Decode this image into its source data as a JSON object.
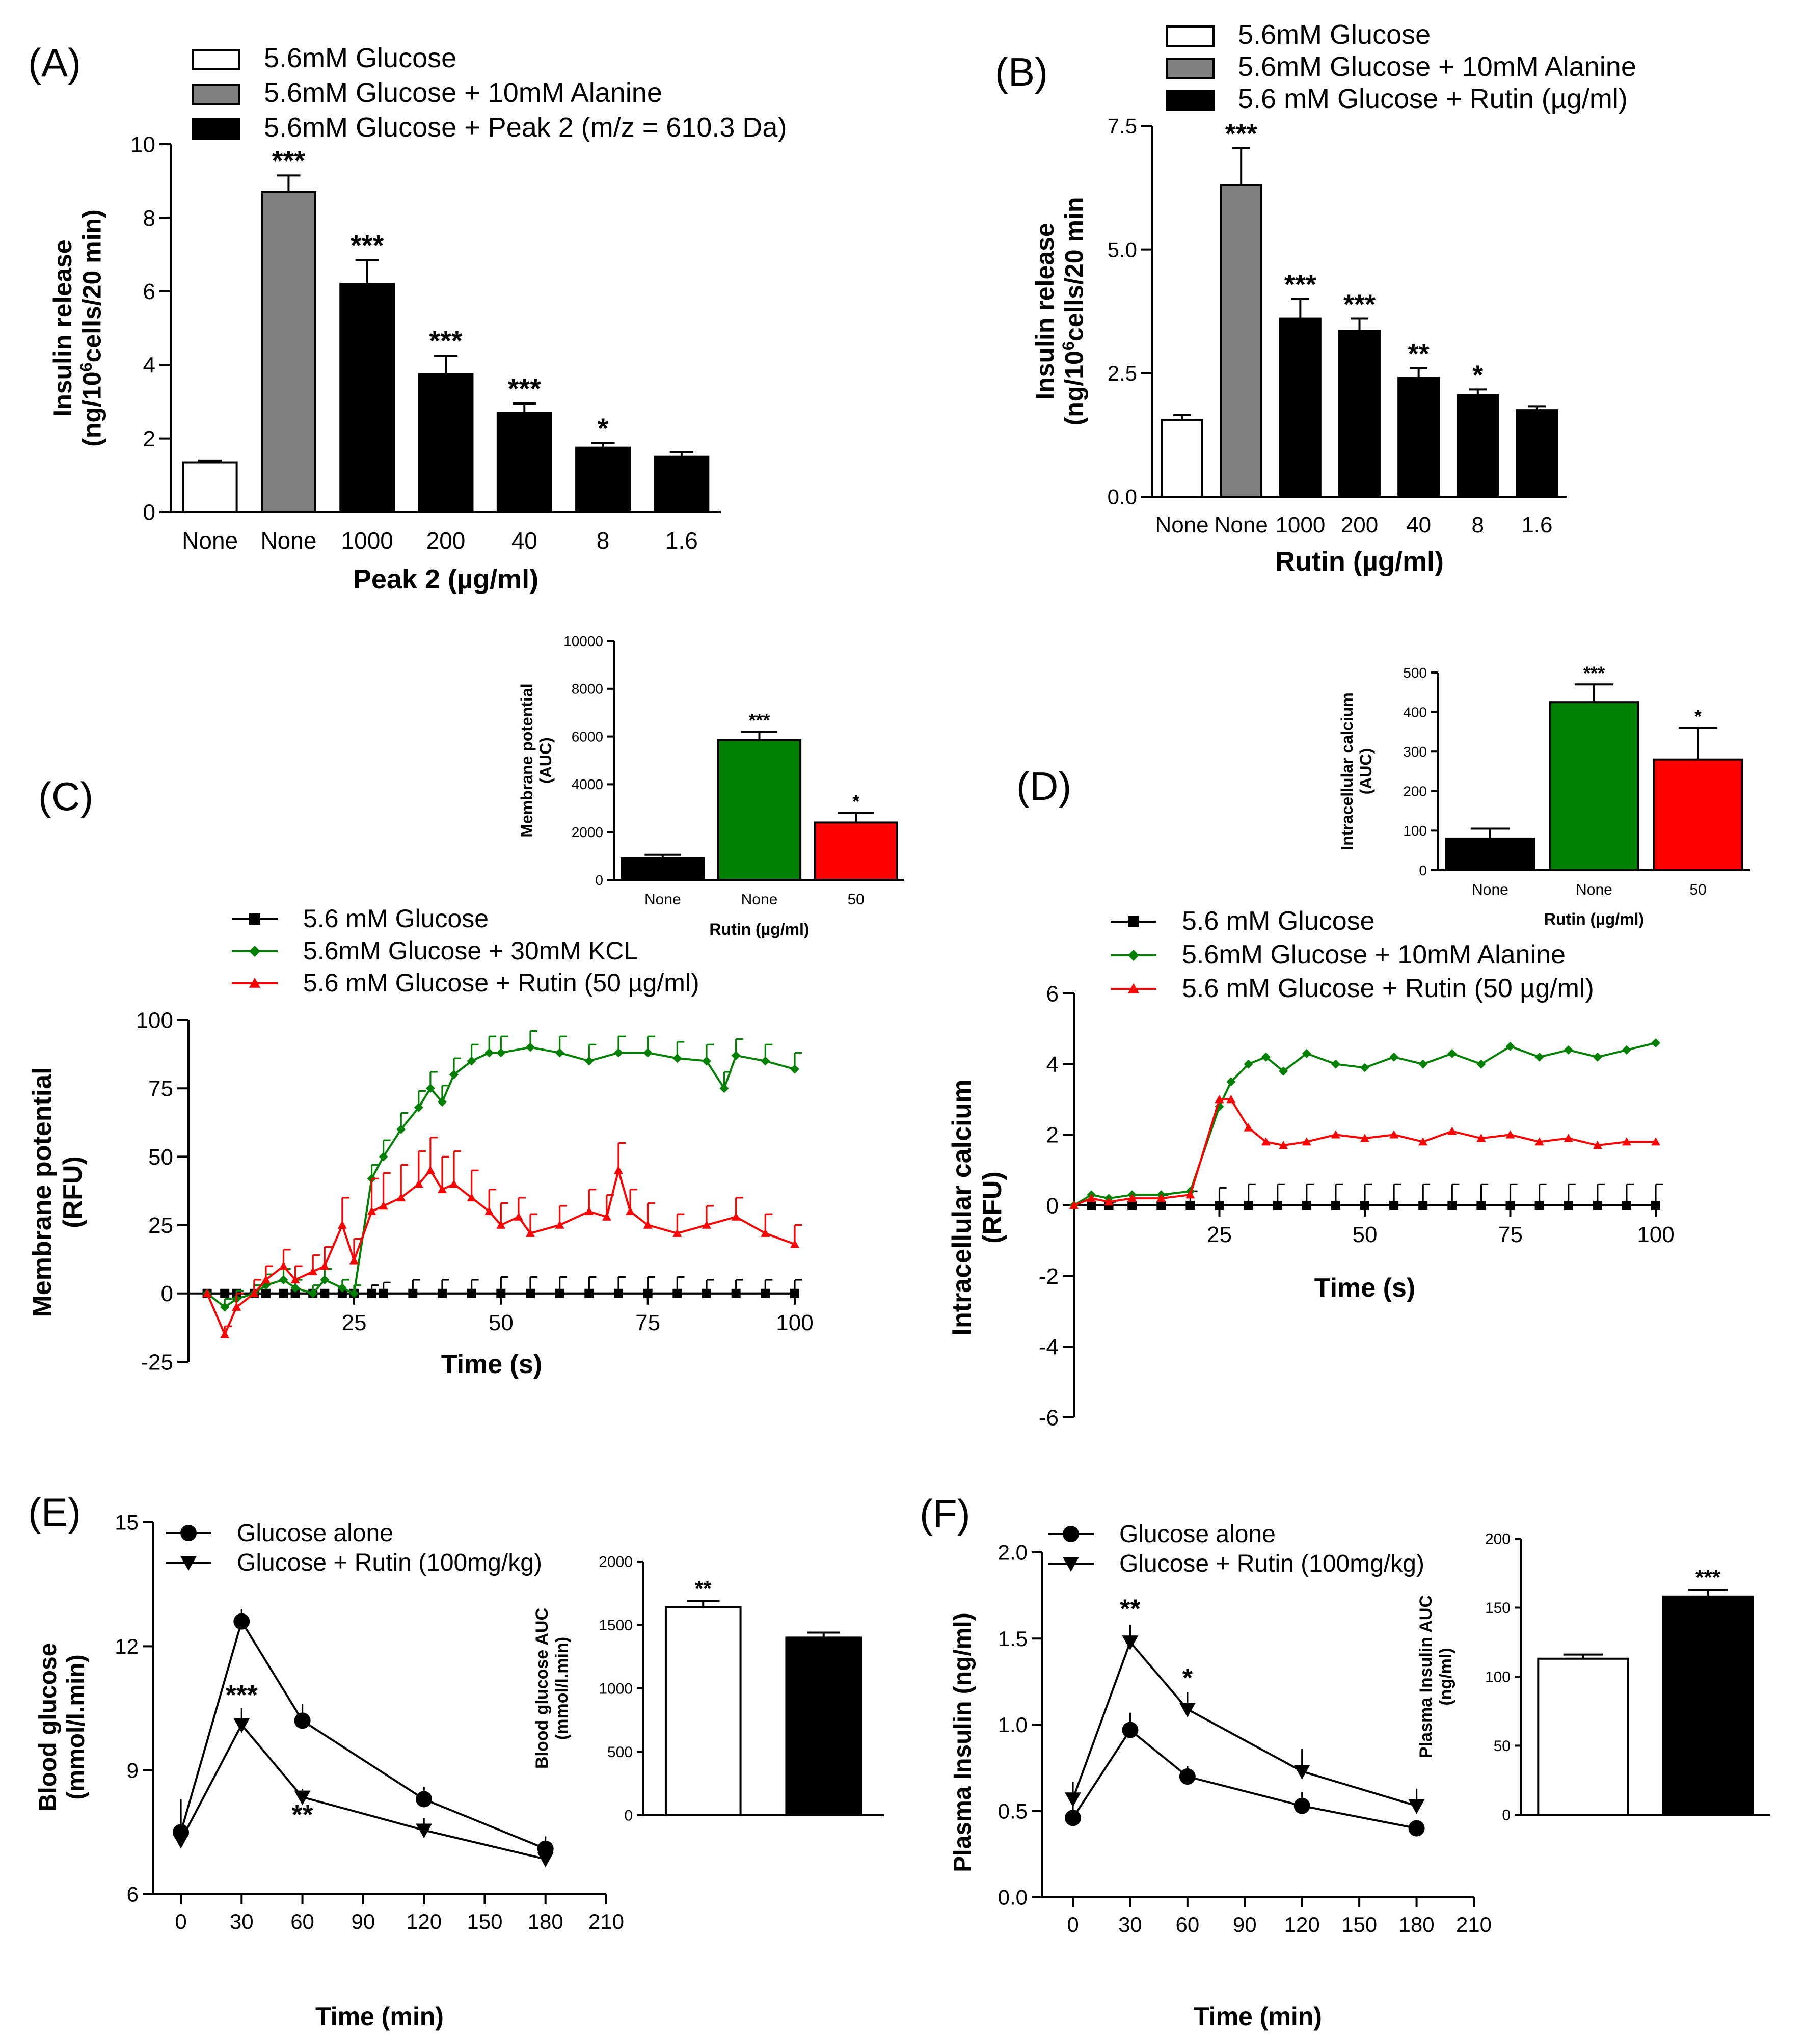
{
  "colors": {
    "white": "#ffffff",
    "gray": "#808080",
    "black": "#000000",
    "green": "#008000",
    "red": "#ff0000",
    "axis": "#000000"
  },
  "chart_data": [
    {
      "id": "A",
      "panel_label": "(A)",
      "type": "bar",
      "categories": [
        "None",
        "None",
        "1000",
        "200",
        "40",
        "8",
        "1.6"
      ],
      "values": [
        1.35,
        8.7,
        6.2,
        3.75,
        2.7,
        1.75,
        1.5
      ],
      "errors": [
        0.05,
        0.45,
        0.65,
        0.5,
        0.25,
        0.12,
        0.12
      ],
      "colors": [
        "white",
        "gray",
        "black",
        "black",
        "black",
        "black",
        "black"
      ],
      "significance": [
        "",
        "***",
        "***",
        "***",
        "***",
        "*",
        ""
      ],
      "ylim": [
        0,
        10
      ],
      "yticks": [
        "0",
        "2",
        "4",
        "6",
        "8",
        "10"
      ],
      "ylabel_line1": "Insulin release",
      "ylabel_line2_pre": "(ng/10",
      "ylabel_line2_sup": "6",
      "ylabel_line2_post": "cells/20 min)",
      "xlabel": "Peak 2 (µg/ml)",
      "legend": [
        {
          "label": "5.6mM Glucose",
          "color": "white"
        },
        {
          "label": "5.6mM Glucose + 10mM Alanine",
          "color": "gray"
        },
        {
          "label": "5.6mM Glucose + Peak 2 (m/z = 610.3 Da)",
          "color": "black"
        }
      ]
    },
    {
      "id": "B",
      "panel_label": "(B)",
      "type": "bar",
      "categories": [
        "None",
        "None",
        "1000",
        "200",
        "40",
        "8",
        "1.6"
      ],
      "values": [
        1.55,
        6.3,
        3.6,
        3.35,
        2.4,
        2.05,
        1.75
      ],
      "errors": [
        0.1,
        0.75,
        0.4,
        0.25,
        0.2,
        0.12,
        0.08
      ],
      "colors": [
        "white",
        "gray",
        "black",
        "black",
        "black",
        "black",
        "black"
      ],
      "significance": [
        "",
        "***",
        "***",
        "***",
        "**",
        "*",
        ""
      ],
      "ylim": [
        0,
        7.5
      ],
      "yticks": [
        "0.0",
        "2.5",
        "5.0",
        "7.5"
      ],
      "ylabel_line1": "Insulin release",
      "ylabel_line2_pre": "(ng/10",
      "ylabel_line2_sup": "6",
      "ylabel_line2_post": "cells/20 min",
      "xlabel": "Rutin (µg/ml)",
      "legend": [
        {
          "label": "5.6mM Glucose",
          "color": "white"
        },
        {
          "label": "5.6mM Glucose + 10mM Alanine",
          "color": "gray"
        },
        {
          "label": "5.6 mM Glucose + Rutin (µg/ml)",
          "color": "black"
        }
      ]
    },
    {
      "id": "C_inset",
      "type": "bar",
      "categories": [
        "None",
        "None",
        "50"
      ],
      "values": [
        900,
        5850,
        2400
      ],
      "errors": [
        150,
        350,
        400
      ],
      "colors": [
        "black",
        "green",
        "red"
      ],
      "significance": [
        "",
        "***",
        "*"
      ],
      "ylim": [
        0,
        10000
      ],
      "yticks": [
        "0",
        "2000",
        "4000",
        "6000",
        "8000",
        "10000"
      ],
      "ylabel_line1": "Membrane potential",
      "ylabel_line2": "(AUC)",
      "xlabel": "Rutin (µg/ml)"
    },
    {
      "id": "C",
      "panel_label": "(C)",
      "type": "line",
      "xlim": [
        -3,
        100
      ],
      "ylim": [
        -25,
        100
      ],
      "xticks": [
        "25",
        "50",
        "75",
        "100"
      ],
      "yticks": [
        "-25",
        "0",
        "25",
        "50",
        "75",
        "100"
      ],
      "xlabel": "Time (s)",
      "ylabel_line1": "Membrane potential",
      "ylabel_line2": "(RFU)",
      "series": [
        {
          "name": "5.6 mM Glucose",
          "color": "black",
          "marker": "square",
          "x": [
            0,
            3,
            5,
            8,
            10,
            13,
            15,
            18,
            20,
            23,
            25,
            28,
            30,
            35,
            40,
            45,
            50,
            55,
            60,
            65,
            70,
            75,
            80,
            85,
            90,
            95,
            100
          ],
          "y": [
            0,
            0,
            0,
            0,
            0,
            0,
            0,
            0,
            0,
            0,
            0,
            0,
            0,
            0,
            0,
            0,
            0,
            0,
            0,
            0,
            0,
            0,
            0,
            0,
            0,
            0,
            0
          ],
          "err": [
            0,
            0,
            0,
            0,
            0,
            0,
            0,
            0,
            0,
            0,
            0,
            3,
            4,
            5,
            5,
            5,
            6,
            6,
            6,
            6,
            6,
            6,
            6,
            5,
            5,
            5,
            5
          ]
        },
        {
          "name": "5.6mM Glucose + 30mM KCL",
          "color": "green",
          "marker": "diamond",
          "x": [
            0,
            3,
            5,
            8,
            10,
            13,
            15,
            18,
            20,
            23,
            25,
            28,
            30,
            33,
            36,
            38,
            40,
            42,
            45,
            48,
            50,
            55,
            60,
            65,
            70,
            75,
            80,
            85,
            88,
            90,
            95,
            100
          ],
          "y": [
            0,
            -5,
            -2,
            0,
            3,
            5,
            2,
            0,
            5,
            2,
            0,
            42,
            50,
            60,
            68,
            75,
            70,
            80,
            85,
            88,
            88,
            90,
            88,
            85,
            88,
            88,
            86,
            85,
            75,
            87,
            85,
            82
          ],
          "err": [
            0,
            3,
            3,
            3,
            4,
            4,
            3,
            3,
            4,
            3,
            3,
            5,
            6,
            6,
            6,
            6,
            6,
            6,
            6,
            6,
            6,
            6,
            6,
            6,
            6,
            6,
            6,
            6,
            6,
            6,
            6,
            6
          ]
        },
        {
          "name": "5.6 mM Glucose + Rutin (50 µg/ml)",
          "color": "red",
          "marker": "triangle",
          "x": [
            0,
            3,
            5,
            8,
            10,
            13,
            15,
            18,
            20,
            23,
            25,
            28,
            30,
            33,
            36,
            38,
            40,
            42,
            45,
            48,
            50,
            53,
            55,
            60,
            65,
            68,
            70,
            72,
            75,
            80,
            85,
            90,
            95,
            100
          ],
          "y": [
            0,
            -15,
            -5,
            0,
            5,
            10,
            5,
            8,
            10,
            25,
            12,
            30,
            32,
            35,
            40,
            45,
            38,
            40,
            35,
            30,
            25,
            28,
            22,
            25,
            30,
            28,
            45,
            30,
            25,
            22,
            25,
            28,
            22,
            18
          ],
          "err": [
            0,
            3,
            5,
            5,
            5,
            6,
            5,
            6,
            7,
            10,
            8,
            12,
            12,
            12,
            12,
            12,
            12,
            12,
            10,
            8,
            8,
            7,
            7,
            7,
            8,
            8,
            10,
            8,
            8,
            7,
            7,
            7,
            7,
            7
          ]
        }
      ]
    },
    {
      "id": "D_inset",
      "type": "bar",
      "categories": [
        "None",
        "None",
        "50"
      ],
      "values": [
        80,
        425,
        280
      ],
      "errors": [
        25,
        45,
        80
      ],
      "colors": [
        "black",
        "green",
        "red"
      ],
      "significance": [
        "",
        "***",
        "*"
      ],
      "ylim": [
        0,
        500
      ],
      "yticks": [
        "0",
        "100",
        "200",
        "300",
        "400",
        "500"
      ],
      "ylabel_line1": "Intracellular calcium",
      "ylabel_line2": "(AUC)",
      "xlabel": "Rutin (µg/ml)"
    },
    {
      "id": "D",
      "panel_label": "(D)",
      "type": "line",
      "xlim": [
        0,
        100
      ],
      "ylim": [
        -6,
        6
      ],
      "xticks": [
        "25",
        "50",
        "75",
        "100"
      ],
      "yticks": [
        "-6",
        "-4",
        "-2",
        "0",
        "2",
        "4",
        "6"
      ],
      "xlabel": "Time (s)",
      "ylabel_line1": "Intracellular calcium",
      "ylabel_line2": "(RFU)",
      "series": [
        {
          "name": "5.6 mM Glucose",
          "color": "black",
          "marker": "square",
          "x": [
            3,
            6,
            10,
            15,
            20,
            25,
            30,
            35,
            40,
            45,
            50,
            55,
            60,
            65,
            70,
            75,
            80,
            85,
            90,
            95,
            100
          ],
          "y": [
            0,
            0,
            0,
            0,
            0,
            0,
            0,
            0,
            0,
            0,
            0,
            0,
            0,
            0,
            0,
            0,
            0,
            0,
            0,
            0,
            0
          ],
          "err": [
            0,
            0.1,
            0.2,
            0.3,
            0.4,
            0.5,
            0.6,
            0.6,
            0.6,
            0.6,
            0.6,
            0.6,
            0.6,
            0.6,
            0.6,
            0.6,
            0.6,
            0.6,
            0.6,
            0.6,
            0.6
          ]
        },
        {
          "name": "5.6mM Glucose + 10mM Alanine",
          "color": "green",
          "marker": "diamond",
          "x": [
            0,
            3,
            6,
            10,
            15,
            20,
            25,
            27,
            30,
            33,
            36,
            40,
            45,
            50,
            55,
            60,
            65,
            70,
            75,
            80,
            85,
            90,
            95,
            100
          ],
          "y": [
            0,
            0.3,
            0.2,
            0.3,
            0.3,
            0.4,
            2.8,
            3.5,
            4.0,
            4.2,
            3.8,
            4.3,
            4.0,
            3.9,
            4.2,
            4.0,
            4.3,
            4.0,
            4.5,
            4.2,
            4.4,
            4.2,
            4.4,
            4.6
          ]
        },
        {
          "name": "5.6 mM Glucose + Rutin (50 µg/ml)",
          "color": "red",
          "marker": "triangle",
          "x": [
            0,
            3,
            6,
            10,
            15,
            20,
            25,
            27,
            30,
            33,
            36,
            40,
            45,
            50,
            55,
            60,
            65,
            70,
            75,
            80,
            85,
            90,
            95,
            100
          ],
          "y": [
            0,
            0.2,
            0.1,
            0.2,
            0.2,
            0.3,
            3.0,
            3.0,
            2.2,
            1.8,
            1.7,
            1.8,
            2.0,
            1.9,
            2.0,
            1.8,
            2.1,
            1.9,
            2.0,
            1.8,
            1.9,
            1.7,
            1.8,
            1.8
          ]
        }
      ]
    },
    {
      "id": "E",
      "panel_label": "(E)",
      "type": "line",
      "xlim": [
        0,
        210
      ],
      "ylim": [
        6,
        15
      ],
      "xticks": [
        "0",
        "30",
        "60",
        "90",
        "120",
        "150",
        "180",
        "210"
      ],
      "yticks": [
        "6",
        "9",
        "12",
        "15"
      ],
      "xlabel": "Time (min)",
      "ylabel_line1": "Blood glucose",
      "ylabel_line2": "(mmol/l.min)",
      "series": [
        {
          "name": "Glucose alone",
          "color": "black",
          "marker": "circle",
          "x": [
            0,
            30,
            60,
            120,
            180
          ],
          "y": [
            7.5,
            12.6,
            10.2,
            8.3,
            7.1
          ],
          "err": [
            0.8,
            0.3,
            0.4,
            0.3,
            0.3
          ]
        },
        {
          "name": "Glucose + Rutin (100mg/kg)",
          "color": "black",
          "marker": "triangle-down",
          "x": [
            0,
            30,
            60,
            120,
            180
          ],
          "y": [
            7.3,
            10.1,
            8.35,
            7.55,
            6.85
          ],
          "err": [
            0.7,
            0.4,
            0.2,
            0.3,
            0.4
          ]
        }
      ],
      "annotations": [
        {
          "x": 30,
          "y": 10.6,
          "text": "***"
        },
        {
          "x": 60,
          "y": 7.7,
          "text": "**"
        }
      ]
    },
    {
      "id": "E_inset",
      "type": "bar",
      "categories": [
        "",
        ""
      ],
      "values": [
        1640,
        1400
      ],
      "errors": [
        50,
        40
      ],
      "colors": [
        "white",
        "black"
      ],
      "significance": [
        "**",
        ""
      ],
      "ylim": [
        0,
        2000
      ],
      "yticks": [
        "0",
        "500",
        "1000",
        "1500",
        "2000"
      ],
      "ylabel_line1": "Blood glucose AUC",
      "ylabel_line2": "(mmol/l.min)"
    },
    {
      "id": "F",
      "panel_label": "(F)",
      "type": "line",
      "xlim": [
        0,
        210
      ],
      "ylim": [
        0,
        2.0
      ],
      "xticks": [
        "0",
        "30",
        "60",
        "90",
        "120",
        "150",
        "180",
        "210"
      ],
      "yticks": [
        "0.0",
        "0.5",
        "1.0",
        "1.5",
        "2.0"
      ],
      "xlabel": "Time (min)",
      "ylabel_line1": "Plasma Insulin (ng/ml)",
      "series": [
        {
          "name": "Glucose alone",
          "color": "black",
          "marker": "circle",
          "x": [
            0,
            30,
            60,
            120,
            180
          ],
          "y": [
            0.46,
            0.97,
            0.7,
            0.53,
            0.4
          ],
          "err": [
            0.1,
            0.1,
            0.06,
            0.08,
            0.04
          ]
        },
        {
          "name": "Glucose + Rutin (100mg/kg)",
          "color": "black",
          "marker": "triangle-down",
          "x": [
            0,
            30,
            60,
            120,
            180
          ],
          "y": [
            0.57,
            1.48,
            1.09,
            0.73,
            0.53
          ],
          "err": [
            0.1,
            0.1,
            0.1,
            0.13,
            0.1
          ]
        }
      ],
      "annotations": [
        {
          "x": 30,
          "y": 1.62,
          "text": "**"
        },
        {
          "x": 60,
          "y": 1.22,
          "text": "*"
        }
      ]
    },
    {
      "id": "F_inset",
      "type": "bar",
      "categories": [
        "",
        ""
      ],
      "values": [
        113,
        158
      ],
      "errors": [
        3,
        5
      ],
      "colors": [
        "white",
        "black"
      ],
      "significance": [
        "",
        "***"
      ],
      "ylim": [
        0,
        200
      ],
      "yticks": [
        "0",
        "50",
        "100",
        "150",
        "200"
      ],
      "ylabel_line1": "Plasma Insulin AUC",
      "ylabel_line2": "(ng/ml)"
    }
  ]
}
